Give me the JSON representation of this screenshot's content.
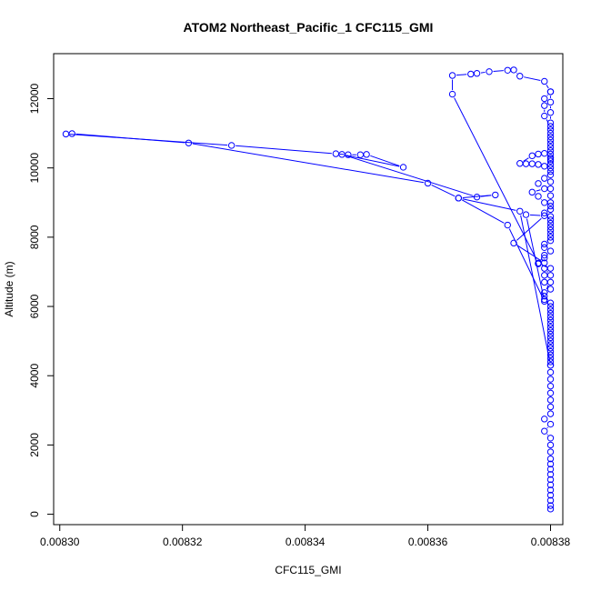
{
  "chart_data": {
    "type": "line",
    "title": "ATOM2 Northeast_Pacific_1 CFC115_GMI",
    "xlabel": "CFC115_GMI",
    "ylabel": "Altitude (m)",
    "xlim": [
      0.008299,
      0.008382
    ],
    "ylim": [
      -300,
      13300
    ],
    "x_ticks": [
      {
        "value": 0.0083,
        "label": "0.00830"
      },
      {
        "value": 0.00832,
        "label": "0.00832"
      },
      {
        "value": 0.00834,
        "label": "0.00834"
      },
      {
        "value": 0.00836,
        "label": "0.00836"
      },
      {
        "value": 0.00838,
        "label": "0.00838"
      }
    ],
    "y_ticks": [
      {
        "value": 0,
        "label": "0"
      },
      {
        "value": 2000,
        "label": "2000"
      },
      {
        "value": 4000,
        "label": "4000"
      },
      {
        "value": 6000,
        "label": "6000"
      },
      {
        "value": 8000,
        "label": "8000"
      },
      {
        "value": 10000,
        "label": "10000"
      },
      {
        "value": 12000,
        "label": "12000"
      }
    ],
    "color": "#0000ff",
    "markers": "open-circle",
    "series": [
      {
        "points": [
          [
            0.00838,
            150
          ],
          [
            0.00838,
            250
          ],
          [
            0.00838,
            400
          ],
          [
            0.00838,
            550
          ],
          [
            0.00838,
            700
          ],
          [
            0.00838,
            850
          ],
          [
            0.00838,
            1000
          ],
          [
            0.00838,
            1150
          ],
          [
            0.00838,
            1300
          ],
          [
            0.00838,
            1450
          ],
          [
            0.00838,
            1600
          ],
          [
            0.00838,
            1800
          ],
          [
            0.00838,
            2000
          ],
          [
            0.00838,
            2200
          ],
          [
            0.008379,
            2400
          ],
          [
            0.00838,
            2600
          ],
          [
            0.008379,
            2750
          ],
          [
            0.00838,
            2900
          ],
          [
            0.00838,
            3100
          ],
          [
            0.00838,
            3300
          ],
          [
            0.00838,
            3500
          ],
          [
            0.00838,
            3700
          ],
          [
            0.00838,
            3900
          ],
          [
            0.00838,
            4100
          ],
          [
            0.00838,
            4300
          ],
          [
            0.00838,
            4500
          ],
          [
            0.00838,
            4700
          ],
          [
            0.00838,
            4900
          ],
          [
            0.00838,
            5100
          ],
          [
            0.00838,
            5300
          ],
          [
            0.00838,
            5500
          ],
          [
            0.00838,
            5700
          ],
          [
            0.00838,
            5900
          ],
          [
            0.00838,
            6100
          ],
          [
            0.008379,
            6300
          ],
          [
            0.00838,
            6500
          ],
          [
            0.008379,
            6700
          ],
          [
            0.008379,
            6900
          ],
          [
            0.00838,
            7100
          ],
          [
            0.008378,
            7230
          ],
          [
            0.008379,
            7400
          ],
          [
            0.00838,
            7600
          ],
          [
            0.008379,
            7800
          ],
          [
            0.00838,
            8000
          ],
          [
            0.00838,
            8200
          ],
          [
            0.00838,
            8400
          ],
          [
            0.00838,
            8600
          ],
          [
            0.00838,
            8800
          ],
          [
            0.00838,
            9000
          ],
          [
            0.00838,
            9200
          ],
          [
            0.00838,
            9400
          ],
          [
            0.00838,
            9600
          ],
          [
            0.00838,
            9800
          ],
          [
            0.00838,
            10000
          ],
          [
            0.00838,
            10200
          ],
          [
            0.00838,
            10400
          ],
          [
            0.00838,
            10600
          ],
          [
            0.00838,
            10800
          ],
          [
            0.00838,
            11000
          ],
          [
            0.00838,
            11200
          ],
          [
            0.008379,
            11500
          ],
          [
            0.008379,
            11800
          ],
          [
            0.008379,
            12000
          ],
          [
            0.00838,
            12200
          ],
          [
            0.008379,
            12500
          ],
          [
            0.008375,
            12650
          ],
          [
            0.008374,
            12830
          ],
          [
            0.008373,
            12820
          ],
          [
            0.00837,
            12780
          ],
          [
            0.008368,
            12730
          ],
          [
            0.008367,
            12710
          ],
          [
            0.008364,
            12670
          ],
          [
            0.008364,
            12130
          ],
          [
            0.008378,
            7250
          ],
          [
            0.008379,
            7100
          ],
          [
            0.00838,
            6900
          ],
          [
            0.00838,
            6700
          ],
          [
            0.008379,
            6400
          ],
          [
            0.008379,
            6200
          ],
          [
            0.00838,
            6000
          ],
          [
            0.00838,
            5800
          ],
          [
            0.00838,
            5600
          ],
          [
            0.00838,
            5400
          ],
          [
            0.00838,
            5200
          ],
          [
            0.00838,
            5000
          ],
          [
            0.00838,
            4800
          ],
          [
            0.00838,
            4600
          ],
          [
            0.00838,
            4400
          ],
          [
            0.00838,
            4300
          ],
          [
            0.008375,
            8750
          ],
          [
            0.008365,
            9130
          ],
          [
            0.00836,
            9560
          ],
          [
            0.008321,
            10720
          ],
          [
            0.008302,
            10990
          ],
          [
            0.008301,
            10980
          ],
          [
            0.008328,
            10650
          ],
          [
            0.008345,
            10410
          ],
          [
            0.008347,
            10380
          ],
          [
            0.008349,
            10380
          ],
          [
            0.00835,
            10390
          ],
          [
            0.008356,
            10020
          ],
          [
            0.008346,
            10390
          ],
          [
            0.008368,
            9160
          ],
          [
            0.008371,
            9220
          ],
          [
            0.008365,
            9130
          ],
          [
            0.008373,
            8350
          ],
          [
            0.008379,
            6150
          ],
          [
            0.008376,
            8650
          ],
          [
            0.008379,
            8620
          ],
          [
            0.008374,
            7830
          ],
          [
            0.008379,
            7260
          ],
          [
            0.008378,
            7250
          ],
          [
            0.008379,
            7480
          ],
          [
            0.008379,
            7700
          ],
          [
            0.00838,
            7900
          ],
          [
            0.00838,
            8100
          ],
          [
            0.00838,
            8300
          ],
          [
            0.00838,
            8500
          ],
          [
            0.008379,
            8700
          ],
          [
            0.00838,
            8900
          ],
          [
            0.008379,
            9000
          ],
          [
            0.008378,
            9180
          ],
          [
            0.008377,
            9300
          ],
          [
            0.008379,
            9400
          ],
          [
            0.008378,
            9550
          ],
          [
            0.008379,
            9700
          ],
          [
            0.00838,
            9900
          ],
          [
            0.008379,
            10050
          ],
          [
            0.008378,
            10100
          ],
          [
            0.008377,
            10120
          ],
          [
            0.008376,
            10120
          ],
          [
            0.008375,
            10130
          ],
          [
            0.008377,
            10350
          ],
          [
            0.008378,
            10400
          ],
          [
            0.008379,
            10420
          ],
          [
            0.00838,
            10250
          ],
          [
            0.00838,
            10100
          ],
          [
            0.00838,
            10300
          ],
          [
            0.00838,
            10500
          ],
          [
            0.00838,
            10700
          ],
          [
            0.00838,
            10900
          ],
          [
            0.00838,
            11100
          ],
          [
            0.00838,
            11300
          ],
          [
            0.00838,
            11600
          ],
          [
            0.00838,
            11900
          ],
          [
            0.00838,
            12200
          ]
        ]
      }
    ]
  }
}
